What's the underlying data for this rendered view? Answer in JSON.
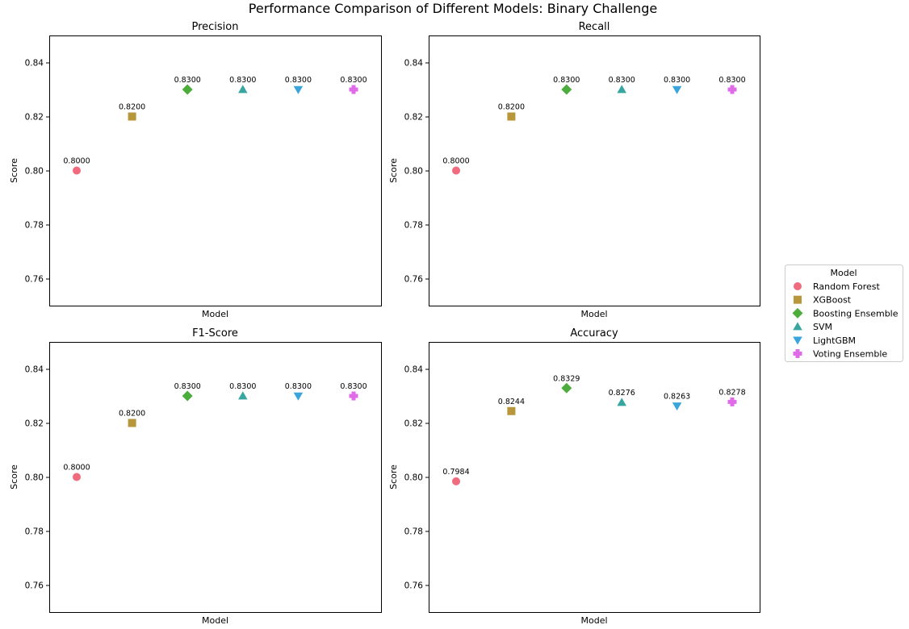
{
  "figure": {
    "title": "Performance Comparison of Different Models: Binary Challenge"
  },
  "legend": {
    "title": "Model",
    "placement": "right",
    "items": [
      {
        "label": "Random Forest",
        "color": "#f06b7e",
        "marker": "circle"
      },
      {
        "label": "XGBoost",
        "color": "#b8963a",
        "marker": "square"
      },
      {
        "label": "Boosting Ensemble",
        "color": "#4cad3c",
        "marker": "diamond"
      },
      {
        "label": "SVM",
        "color": "#38a6a0",
        "marker": "triangle-up"
      },
      {
        "label": "LightGBM",
        "color": "#3aa5dd",
        "marker": "triangle-down"
      },
      {
        "label": "Voting Ensemble",
        "color": "#e06be8",
        "marker": "plus"
      }
    ]
  },
  "chart_data": [
    {
      "type": "scatter",
      "title": "Precision",
      "xlabel": "Model",
      "ylabel": "Score",
      "ylim": [
        0.75,
        0.85
      ],
      "yticks": [
        "0.76",
        "0.78",
        "0.80",
        "0.82",
        "0.84"
      ],
      "categories": [
        "Random Forest",
        "XGBoost",
        "Boosting Ensemble",
        "SVM",
        "LightGBM",
        "Voting Ensemble"
      ],
      "values": [
        0.8,
        0.82,
        0.83,
        0.83,
        0.83,
        0.83
      ],
      "labels": [
        "0.8000",
        "0.8200",
        "0.8300",
        "0.8300",
        "0.8300",
        "0.8300"
      ]
    },
    {
      "type": "scatter",
      "title": "Recall",
      "xlabel": "Model",
      "ylabel": "Score",
      "ylim": [
        0.75,
        0.85
      ],
      "yticks": [
        "0.76",
        "0.78",
        "0.80",
        "0.82",
        "0.84"
      ],
      "categories": [
        "Random Forest",
        "XGBoost",
        "Boosting Ensemble",
        "SVM",
        "LightGBM",
        "Voting Ensemble"
      ],
      "values": [
        0.8,
        0.82,
        0.83,
        0.83,
        0.83,
        0.83
      ],
      "labels": [
        "0.8000",
        "0.8200",
        "0.8300",
        "0.8300",
        "0.8300",
        "0.8300"
      ]
    },
    {
      "type": "scatter",
      "title": "F1-Score",
      "xlabel": "Model",
      "ylabel": "Score",
      "ylim": [
        0.75,
        0.85
      ],
      "yticks": [
        "0.76",
        "0.78",
        "0.80",
        "0.82",
        "0.84"
      ],
      "categories": [
        "Random Forest",
        "XGBoost",
        "Boosting Ensemble",
        "SVM",
        "LightGBM",
        "Voting Ensemble"
      ],
      "values": [
        0.8,
        0.82,
        0.83,
        0.83,
        0.83,
        0.83
      ],
      "labels": [
        "0.8000",
        "0.8200",
        "0.8300",
        "0.8300",
        "0.8300",
        "0.8300"
      ]
    },
    {
      "type": "scatter",
      "title": "Accuracy",
      "xlabel": "Model",
      "ylabel": "Score",
      "ylim": [
        0.75,
        0.85
      ],
      "yticks": [
        "0.76",
        "0.78",
        "0.80",
        "0.82",
        "0.84"
      ],
      "categories": [
        "Random Forest",
        "XGBoost",
        "Boosting Ensemble",
        "SVM",
        "LightGBM",
        "Voting Ensemble"
      ],
      "values": [
        0.7984,
        0.8244,
        0.8329,
        0.8276,
        0.8263,
        0.8278
      ],
      "labels": [
        "0.7984",
        "0.8244",
        "0.8329",
        "0.8276",
        "0.8263",
        "0.8278"
      ]
    }
  ]
}
